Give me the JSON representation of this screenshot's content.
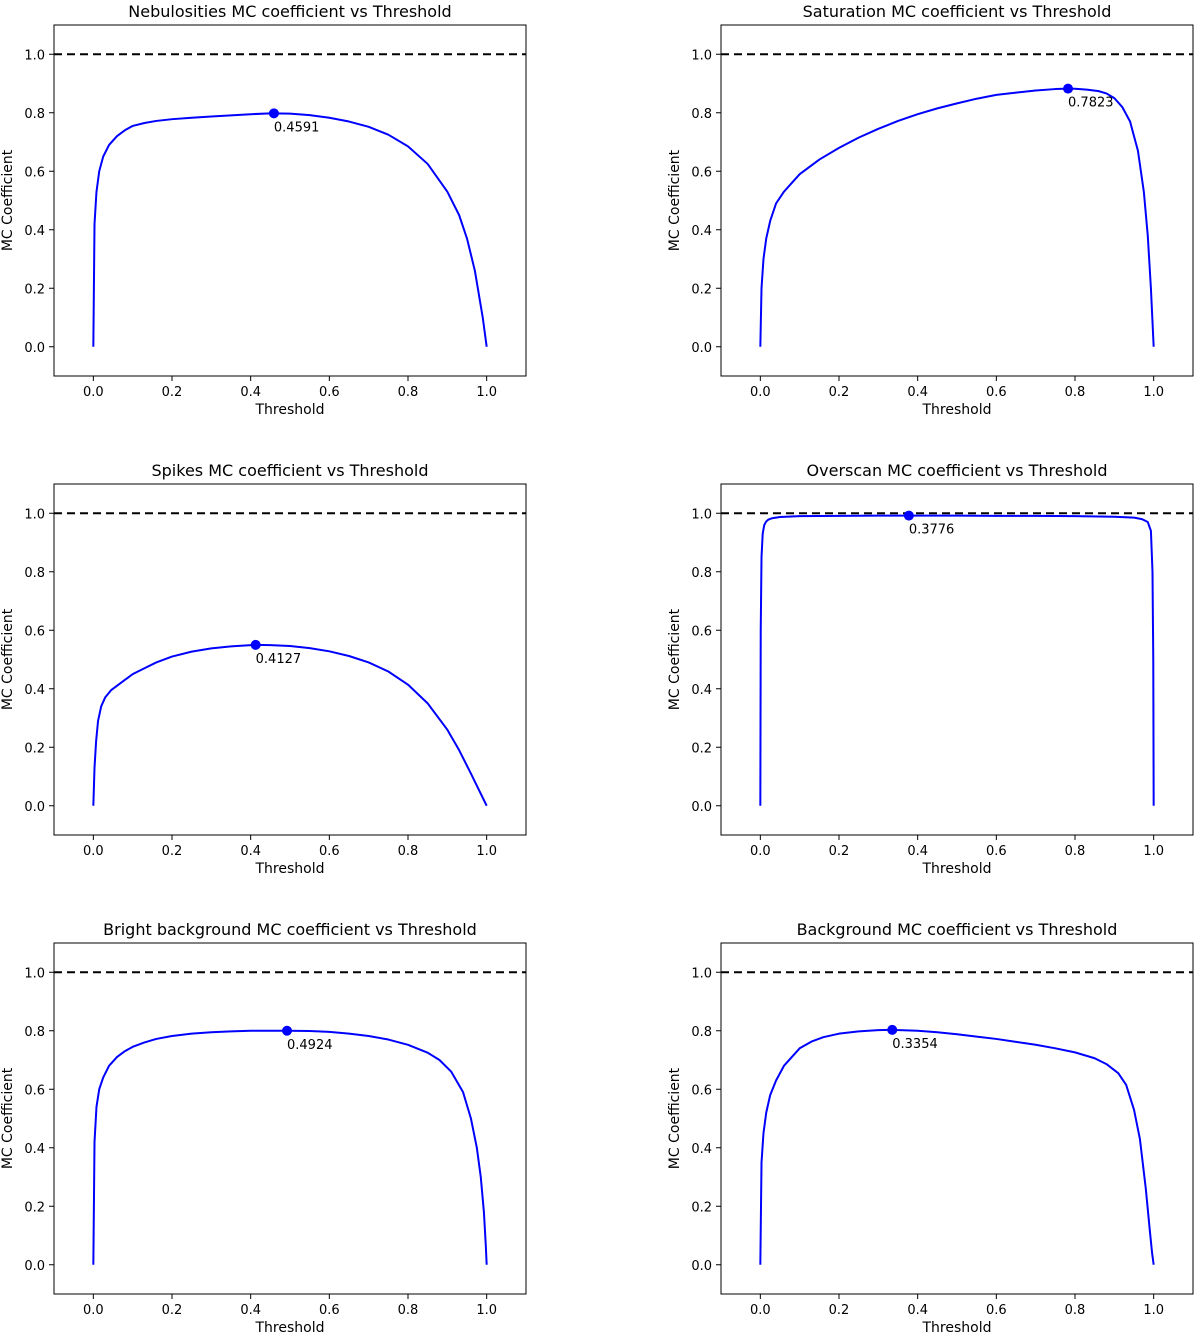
{
  "chart_data": [
    {
      "type": "line",
      "title": "Nebulosities MC coefficient vs Threshold",
      "xlabel": "Threshold",
      "ylabel": "MC Coefficient",
      "xlim": [
        -0.1,
        1.1
      ],
      "ylim": [
        -0.1,
        1.1
      ],
      "xticks": [
        "0.0",
        "0.2",
        "0.4",
        "0.6",
        "0.8",
        "1.0"
      ],
      "yticks": [
        "0.0",
        "0.2",
        "0.4",
        "0.6",
        "0.8",
        "1.0"
      ],
      "reference_line": {
        "y": 1.0,
        "style": "dashed",
        "color": "#000000"
      },
      "series": [
        {
          "color": "#0000ff",
          "x": [
            0,
            0.003,
            0.008,
            0.015,
            0.025,
            0.04,
            0.06,
            0.08,
            0.1,
            0.13,
            0.16,
            0.2,
            0.25,
            0.3,
            0.35,
            0.4,
            0.45,
            0.5,
            0.55,
            0.6,
            0.65,
            0.7,
            0.75,
            0.8,
            0.85,
            0.9,
            0.93,
            0.95,
            0.97,
            0.98,
            0.99,
            0.995,
            1.0
          ],
          "y": [
            0,
            0.42,
            0.53,
            0.6,
            0.65,
            0.69,
            0.72,
            0.74,
            0.755,
            0.765,
            0.772,
            0.778,
            0.783,
            0.787,
            0.791,
            0.795,
            0.798,
            0.797,
            0.792,
            0.783,
            0.77,
            0.752,
            0.725,
            0.685,
            0.625,
            0.53,
            0.45,
            0.37,
            0.26,
            0.18,
            0.1,
            0.05,
            0
          ]
        }
      ],
      "marker": {
        "x": 0.4591,
        "y": 0.798,
        "label": "0.4591"
      }
    },
    {
      "type": "line",
      "title": "Saturation MC coefficient vs Threshold",
      "xlabel": "Threshold",
      "ylabel": "MC Coefficient",
      "xlim": [
        -0.1,
        1.1
      ],
      "ylim": [
        -0.1,
        1.1
      ],
      "xticks": [
        "0.0",
        "0.2",
        "0.4",
        "0.6",
        "0.8",
        "1.0"
      ],
      "yticks": [
        "0.0",
        "0.2",
        "0.4",
        "0.6",
        "0.8",
        "1.0"
      ],
      "reference_line": {
        "y": 1.0,
        "style": "dashed",
        "color": "#000000"
      },
      "series": [
        {
          "color": "#0000ff",
          "x": [
            0,
            0.003,
            0.008,
            0.015,
            0.025,
            0.04,
            0.06,
            0.08,
            0.1,
            0.15,
            0.2,
            0.25,
            0.3,
            0.35,
            0.4,
            0.45,
            0.5,
            0.55,
            0.6,
            0.65,
            0.7,
            0.75,
            0.7823,
            0.8,
            0.83,
            0.86,
            0.88,
            0.9,
            0.92,
            0.94,
            0.96,
            0.975,
            0.985,
            0.993,
            1.0
          ],
          "y": [
            0,
            0.2,
            0.3,
            0.37,
            0.43,
            0.49,
            0.53,
            0.56,
            0.59,
            0.64,
            0.68,
            0.715,
            0.745,
            0.772,
            0.795,
            0.815,
            0.832,
            0.848,
            0.861,
            0.869,
            0.876,
            0.881,
            0.8825,
            0.882,
            0.879,
            0.874,
            0.866,
            0.85,
            0.82,
            0.77,
            0.67,
            0.53,
            0.38,
            0.2,
            0
          ]
        }
      ],
      "marker": {
        "x": 0.7823,
        "y": 0.8825,
        "label": "0.7823"
      }
    },
    {
      "type": "line",
      "title": "Spikes MC coefficient vs Threshold",
      "xlabel": "Threshold",
      "ylabel": "MC Coefficient",
      "xlim": [
        -0.1,
        1.1
      ],
      "ylim": [
        -0.1,
        1.1
      ],
      "xticks": [
        "0.0",
        "0.2",
        "0.4",
        "0.6",
        "0.8",
        "1.0"
      ],
      "yticks": [
        "0.0",
        "0.2",
        "0.4",
        "0.6",
        "0.8",
        "1.0"
      ],
      "reference_line": {
        "y": 1.0,
        "style": "dashed",
        "color": "#000000"
      },
      "series": [
        {
          "color": "#0000ff",
          "x": [
            0,
            0.003,
            0.007,
            0.012,
            0.02,
            0.03,
            0.045,
            0.06,
            0.08,
            0.1,
            0.13,
            0.16,
            0.2,
            0.25,
            0.3,
            0.35,
            0.4127,
            0.45,
            0.5,
            0.55,
            0.6,
            0.65,
            0.7,
            0.75,
            0.8,
            0.85,
            0.9,
            0.93,
            0.96,
            0.98,
            1.0
          ],
          "y": [
            0,
            0.13,
            0.22,
            0.29,
            0.34,
            0.37,
            0.395,
            0.41,
            0.43,
            0.45,
            0.47,
            0.49,
            0.51,
            0.527,
            0.538,
            0.545,
            0.55,
            0.549,
            0.546,
            0.539,
            0.528,
            0.512,
            0.49,
            0.459,
            0.414,
            0.35,
            0.26,
            0.19,
            0.11,
            0.055,
            0
          ]
        }
      ],
      "marker": {
        "x": 0.4127,
        "y": 0.55,
        "label": "0.4127"
      }
    },
    {
      "type": "line",
      "title": "Overscan MC coefficient vs Threshold",
      "xlabel": "Threshold",
      "ylabel": "MC Coefficient",
      "xlim": [
        -0.1,
        1.1
      ],
      "ylim": [
        -0.1,
        1.1
      ],
      "xticks": [
        "0.0",
        "0.2",
        "0.4",
        "0.6",
        "0.8",
        "1.0"
      ],
      "yticks": [
        "0.0",
        "0.2",
        "0.4",
        "0.6",
        "0.8",
        "1.0"
      ],
      "reference_line": {
        "y": 1.0,
        "style": "dashed",
        "color": "#000000"
      },
      "series": [
        {
          "color": "#0000ff",
          "x": [
            0,
            0.001,
            0.003,
            0.006,
            0.01,
            0.015,
            0.02,
            0.03,
            0.05,
            0.1,
            0.2,
            0.3,
            0.3776,
            0.5,
            0.6,
            0.7,
            0.8,
            0.9,
            0.95,
            0.97,
            0.985,
            0.993,
            0.997,
            0.999,
            1.0
          ],
          "y": [
            0,
            0.6,
            0.85,
            0.93,
            0.96,
            0.972,
            0.978,
            0.983,
            0.987,
            0.99,
            0.991,
            0.992,
            0.992,
            0.992,
            0.991,
            0.991,
            0.99,
            0.988,
            0.985,
            0.98,
            0.97,
            0.94,
            0.8,
            0.5,
            0
          ]
        }
      ],
      "marker": {
        "x": 0.3776,
        "y": 0.992,
        "label": "0.3776"
      }
    },
    {
      "type": "line",
      "title": "Bright background MC coefficient vs Threshold",
      "xlabel": "Threshold",
      "ylabel": "MC Coefficient",
      "xlim": [
        -0.1,
        1.1
      ],
      "ylim": [
        -0.1,
        1.1
      ],
      "xticks": [
        "0.0",
        "0.2",
        "0.4",
        "0.6",
        "0.8",
        "1.0"
      ],
      "yticks": [
        "0.0",
        "0.2",
        "0.4",
        "0.6",
        "0.8",
        "1.0"
      ],
      "reference_line": {
        "y": 1.0,
        "style": "dashed",
        "color": "#000000"
      },
      "series": [
        {
          "color": "#0000ff",
          "x": [
            0,
            0.003,
            0.008,
            0.015,
            0.025,
            0.04,
            0.06,
            0.08,
            0.1,
            0.13,
            0.16,
            0.2,
            0.25,
            0.3,
            0.35,
            0.4,
            0.4924,
            0.55,
            0.6,
            0.65,
            0.7,
            0.75,
            0.8,
            0.85,
            0.88,
            0.91,
            0.94,
            0.96,
            0.975,
            0.985,
            0.993,
            0.998,
            1.0
          ],
          "y": [
            0,
            0.42,
            0.54,
            0.6,
            0.64,
            0.68,
            0.71,
            0.73,
            0.745,
            0.76,
            0.772,
            0.782,
            0.79,
            0.795,
            0.798,
            0.8,
            0.8,
            0.799,
            0.796,
            0.79,
            0.782,
            0.77,
            0.752,
            0.725,
            0.7,
            0.66,
            0.59,
            0.5,
            0.4,
            0.3,
            0.18,
            0.06,
            0
          ]
        }
      ],
      "marker": {
        "x": 0.4924,
        "y": 0.8,
        "label": "0.4924"
      }
    },
    {
      "type": "line",
      "title": "Background MC coefficient vs Threshold",
      "xlabel": "Threshold",
      "ylabel": "MC Coefficient",
      "xlim": [
        -0.1,
        1.1
      ],
      "ylim": [
        -0.1,
        1.1
      ],
      "xticks": [
        "0.0",
        "0.2",
        "0.4",
        "0.6",
        "0.8",
        "1.0"
      ],
      "yticks": [
        "0.0",
        "0.2",
        "0.4",
        "0.6",
        "0.8",
        "1.0"
      ],
      "reference_line": {
        "y": 1.0,
        "style": "dashed",
        "color": "#000000"
      },
      "series": [
        {
          "color": "#0000ff",
          "x": [
            0,
            0.003,
            0.008,
            0.015,
            0.025,
            0.04,
            0.06,
            0.08,
            0.1,
            0.13,
            0.16,
            0.2,
            0.25,
            0.3,
            0.3354,
            0.4,
            0.45,
            0.5,
            0.55,
            0.6,
            0.65,
            0.7,
            0.75,
            0.8,
            0.85,
            0.88,
            0.91,
            0.93,
            0.95,
            0.965,
            0.98,
            0.99,
            0.996,
            1.0
          ],
          "y": [
            0,
            0.35,
            0.45,
            0.52,
            0.58,
            0.63,
            0.68,
            0.71,
            0.74,
            0.763,
            0.778,
            0.79,
            0.798,
            0.802,
            0.803,
            0.8,
            0.795,
            0.788,
            0.78,
            0.772,
            0.762,
            0.752,
            0.74,
            0.726,
            0.706,
            0.686,
            0.655,
            0.615,
            0.53,
            0.43,
            0.26,
            0.12,
            0.04,
            0
          ]
        }
      ],
      "marker": {
        "x": 0.3354,
        "y": 0.803,
        "label": "0.3354"
      }
    }
  ]
}
